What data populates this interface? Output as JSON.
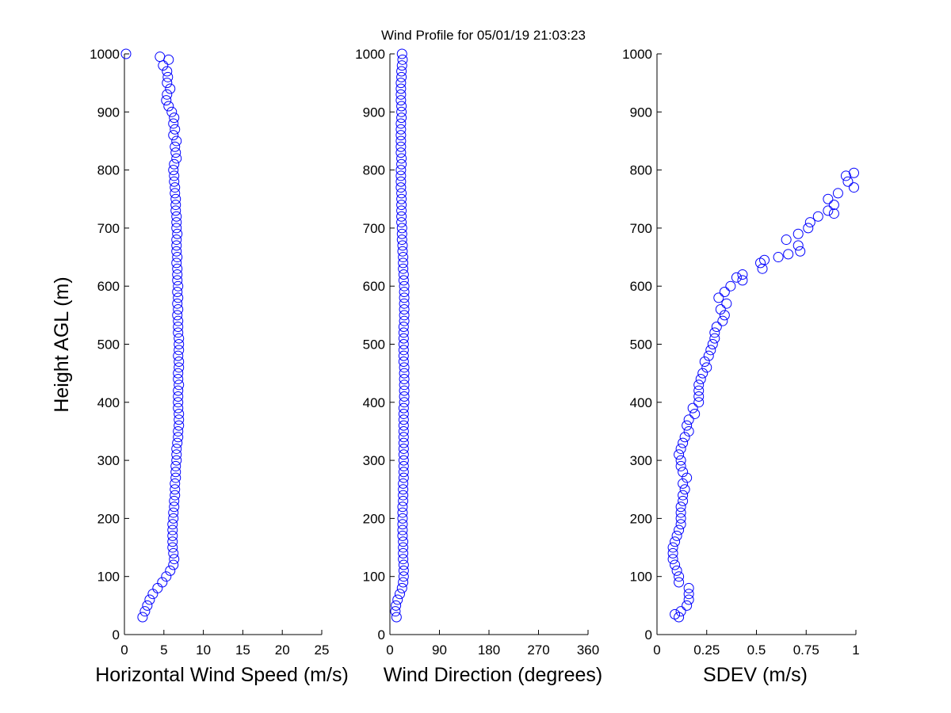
{
  "title": "Wind Profile for  05/01/19 21:03:23",
  "marker_color": "#0000ff",
  "chart_data": [
    {
      "type": "scatter",
      "name": "speed",
      "xlabel": "Horizontal Wind Speed (m/s)",
      "ylabel": "Height AGL (m)",
      "xlim": [
        0,
        25
      ],
      "ylim": [
        0,
        1000
      ],
      "xticks": [
        "0",
        "5",
        "10",
        "15",
        "20",
        "25"
      ],
      "xtick_values": [
        0,
        5,
        10,
        15,
        20,
        25
      ],
      "yticks": [
        "0",
        "100",
        "200",
        "300",
        "400",
        "500",
        "600",
        "700",
        "800",
        "900",
        "1000"
      ],
      "points": [
        [
          2.3,
          30
        ],
        [
          2.6,
          40
        ],
        [
          2.9,
          50
        ],
        [
          3.2,
          60
        ],
        [
          3.6,
          70
        ],
        [
          4.2,
          80
        ],
        [
          4.8,
          90
        ],
        [
          5.3,
          100
        ],
        [
          5.8,
          110
        ],
        [
          6.2,
          120
        ],
        [
          6.3,
          130
        ],
        [
          6.2,
          140
        ],
        [
          6.1,
          150
        ],
        [
          6.1,
          160
        ],
        [
          6.1,
          170
        ],
        [
          6.1,
          180
        ],
        [
          6.1,
          190
        ],
        [
          6.2,
          200
        ],
        [
          6.2,
          210
        ],
        [
          6.3,
          220
        ],
        [
          6.3,
          230
        ],
        [
          6.4,
          240
        ],
        [
          6.4,
          250
        ],
        [
          6.4,
          260
        ],
        [
          6.5,
          270
        ],
        [
          6.5,
          280
        ],
        [
          6.5,
          290
        ],
        [
          6.6,
          300
        ],
        [
          6.6,
          310
        ],
        [
          6.6,
          320
        ],
        [
          6.7,
          330
        ],
        [
          6.8,
          340
        ],
        [
          6.8,
          350
        ],
        [
          6.9,
          360
        ],
        [
          6.9,
          370
        ],
        [
          6.9,
          380
        ],
        [
          6.8,
          390
        ],
        [
          6.8,
          400
        ],
        [
          6.8,
          410
        ],
        [
          6.8,
          420
        ],
        [
          6.9,
          430
        ],
        [
          6.8,
          440
        ],
        [
          6.8,
          450
        ],
        [
          6.9,
          460
        ],
        [
          6.9,
          470
        ],
        [
          6.8,
          480
        ],
        [
          6.9,
          490
        ],
        [
          6.9,
          500
        ],
        [
          6.9,
          510
        ],
        [
          6.8,
          520
        ],
        [
          6.8,
          530
        ],
        [
          6.8,
          540
        ],
        [
          6.7,
          550
        ],
        [
          6.8,
          560
        ],
        [
          6.7,
          570
        ],
        [
          6.8,
          580
        ],
        [
          6.7,
          590
        ],
        [
          6.8,
          600
        ],
        [
          6.7,
          610
        ],
        [
          6.7,
          620
        ],
        [
          6.7,
          630
        ],
        [
          6.6,
          640
        ],
        [
          6.7,
          650
        ],
        [
          6.6,
          660
        ],
        [
          6.6,
          670
        ],
        [
          6.6,
          680
        ],
        [
          6.7,
          690
        ],
        [
          6.6,
          700
        ],
        [
          6.6,
          710
        ],
        [
          6.6,
          720
        ],
        [
          6.5,
          730
        ],
        [
          6.5,
          740
        ],
        [
          6.5,
          750
        ],
        [
          6.4,
          760
        ],
        [
          6.4,
          770
        ],
        [
          6.3,
          780
        ],
        [
          6.3,
          790
        ],
        [
          6.2,
          800
        ],
        [
          6.3,
          810
        ],
        [
          6.6,
          820
        ],
        [
          6.5,
          830
        ],
        [
          6.4,
          840
        ],
        [
          6.6,
          850
        ],
        [
          6.2,
          860
        ],
        [
          6.4,
          870
        ],
        [
          6.2,
          880
        ],
        [
          6.3,
          890
        ],
        [
          6.0,
          900
        ],
        [
          5.6,
          910
        ],
        [
          5.3,
          920
        ],
        [
          5.4,
          930
        ],
        [
          5.8,
          940
        ],
        [
          5.4,
          950
        ],
        [
          5.5,
          960
        ],
        [
          5.4,
          970
        ],
        [
          4.9,
          980
        ],
        [
          5.6,
          990
        ],
        [
          4.5,
          995
        ],
        [
          0.2,
          1000
        ]
      ]
    },
    {
      "type": "scatter",
      "name": "direction",
      "xlabel": "Wind Direction (degrees)",
      "xlim": [
        0,
        360
      ],
      "ylim": [
        0,
        1000
      ],
      "xticks": [
        "0",
        "90",
        "180",
        "270",
        "360"
      ],
      "xtick_values": [
        0,
        90,
        180,
        270,
        360
      ],
      "yticks": [
        "0",
        "100",
        "200",
        "300",
        "400",
        "500",
        "600",
        "700",
        "800",
        "900",
        "1000"
      ],
      "points": [
        [
          12,
          30
        ],
        [
          10,
          40
        ],
        [
          11,
          50
        ],
        [
          14,
          60
        ],
        [
          18,
          70
        ],
        [
          22,
          80
        ],
        [
          24,
          90
        ],
        [
          25,
          100
        ],
        [
          25,
          110
        ],
        [
          25,
          120
        ],
        [
          24,
          130
        ],
        [
          24,
          140
        ],
        [
          24,
          150
        ],
        [
          24,
          160
        ],
        [
          23,
          170
        ],
        [
          23,
          180
        ],
        [
          23,
          190
        ],
        [
          23,
          200
        ],
        [
          23,
          210
        ],
        [
          23,
          220
        ],
        [
          24,
          230
        ],
        [
          24,
          240
        ],
        [
          24,
          250
        ],
        [
          24,
          260
        ],
        [
          25,
          270
        ],
        [
          25,
          280
        ],
        [
          25,
          290
        ],
        [
          25,
          300
        ],
        [
          25,
          310
        ],
        [
          25,
          320
        ],
        [
          25,
          330
        ],
        [
          25,
          340
        ],
        [
          25,
          350
        ],
        [
          25,
          360
        ],
        [
          25,
          370
        ],
        [
          25,
          380
        ],
        [
          25,
          390
        ],
        [
          26,
          400
        ],
        [
          26,
          410
        ],
        [
          26,
          420
        ],
        [
          26,
          430
        ],
        [
          26,
          440
        ],
        [
          26,
          450
        ],
        [
          26,
          460
        ],
        [
          25,
          470
        ],
        [
          25,
          480
        ],
        [
          25,
          490
        ],
        [
          25,
          500
        ],
        [
          25,
          510
        ],
        [
          25,
          520
        ],
        [
          25,
          530
        ],
        [
          26,
          540
        ],
        [
          26,
          550
        ],
        [
          26,
          560
        ],
        [
          26,
          570
        ],
        [
          26,
          580
        ],
        [
          26,
          590
        ],
        [
          26,
          600
        ],
        [
          25,
          610
        ],
        [
          25,
          620
        ],
        [
          24,
          630
        ],
        [
          24,
          640
        ],
        [
          24,
          650
        ],
        [
          23,
          660
        ],
        [
          23,
          670
        ],
        [
          22,
          680
        ],
        [
          22,
          690
        ],
        [
          22,
          700
        ],
        [
          21,
          710
        ],
        [
          21,
          720
        ],
        [
          21,
          730
        ],
        [
          21,
          740
        ],
        [
          21,
          750
        ],
        [
          21,
          760
        ],
        [
          20,
          770
        ],
        [
          20,
          780
        ],
        [
          20,
          790
        ],
        [
          20,
          800
        ],
        [
          21,
          810
        ],
        [
          21,
          820
        ],
        [
          20,
          830
        ],
        [
          20,
          840
        ],
        [
          20,
          850
        ],
        [
          20,
          860
        ],
        [
          20,
          870
        ],
        [
          20,
          880
        ],
        [
          21,
          890
        ],
        [
          21,
          900
        ],
        [
          21,
          910
        ],
        [
          20,
          920
        ],
        [
          20,
          930
        ],
        [
          20,
          940
        ],
        [
          20,
          950
        ],
        [
          21,
          960
        ],
        [
          21,
          970
        ],
        [
          22,
          980
        ],
        [
          23,
          990
        ],
        [
          22,
          1000
        ]
      ]
    },
    {
      "type": "scatter",
      "name": "sdev",
      "xlabel": "SDEV  (m/s)",
      "xlim": [
        0,
        1
      ],
      "ylim": [
        0,
        1000
      ],
      "xticks": [
        "0",
        "0.25",
        "0.5",
        "0.75",
        "1"
      ],
      "xtick_values": [
        0,
        0.25,
        0.5,
        0.75,
        1
      ],
      "yticks": [
        "0",
        "100",
        "200",
        "300",
        "400",
        "500",
        "600",
        "700",
        "800",
        "900",
        "1000"
      ],
      "points": [
        [
          0.11,
          30
        ],
        [
          0.09,
          35
        ],
        [
          0.12,
          40
        ],
        [
          0.15,
          50
        ],
        [
          0.16,
          60
        ],
        [
          0.16,
          70
        ],
        [
          0.16,
          80
        ],
        [
          0.11,
          90
        ],
        [
          0.11,
          100
        ],
        [
          0.1,
          110
        ],
        [
          0.09,
          120
        ],
        [
          0.08,
          130
        ],
        [
          0.08,
          140
        ],
        [
          0.08,
          150
        ],
        [
          0.09,
          160
        ],
        [
          0.1,
          170
        ],
        [
          0.11,
          180
        ],
        [
          0.12,
          190
        ],
        [
          0.12,
          200
        ],
        [
          0.12,
          210
        ],
        [
          0.12,
          220
        ],
        [
          0.13,
          230
        ],
        [
          0.13,
          240
        ],
        [
          0.14,
          250
        ],
        [
          0.13,
          260
        ],
        [
          0.15,
          270
        ],
        [
          0.13,
          280
        ],
        [
          0.12,
          290
        ],
        [
          0.12,
          300
        ],
        [
          0.11,
          310
        ],
        [
          0.12,
          320
        ],
        [
          0.13,
          330
        ],
        [
          0.14,
          340
        ],
        [
          0.16,
          350
        ],
        [
          0.15,
          360
        ],
        [
          0.16,
          370
        ],
        [
          0.19,
          380
        ],
        [
          0.18,
          390
        ],
        [
          0.21,
          400
        ],
        [
          0.21,
          410
        ],
        [
          0.21,
          420
        ],
        [
          0.21,
          430
        ],
        [
          0.22,
          440
        ],
        [
          0.23,
          450
        ],
        [
          0.25,
          460
        ],
        [
          0.24,
          470
        ],
        [
          0.26,
          480
        ],
        [
          0.27,
          490
        ],
        [
          0.28,
          500
        ],
        [
          0.29,
          510
        ],
        [
          0.29,
          520
        ],
        [
          0.3,
          530
        ],
        [
          0.33,
          540
        ],
        [
          0.34,
          550
        ],
        [
          0.32,
          560
        ],
        [
          0.35,
          570
        ],
        [
          0.31,
          580
        ],
        [
          0.34,
          590
        ],
        [
          0.37,
          600
        ],
        [
          0.43,
          610
        ],
        [
          0.4,
          615
        ],
        [
          0.43,
          620
        ],
        [
          0.53,
          630
        ],
        [
          0.52,
          640
        ],
        [
          0.54,
          645
        ],
        [
          0.61,
          650
        ],
        [
          0.66,
          655
        ],
        [
          0.72,
          660
        ],
        [
          0.71,
          670
        ],
        [
          0.65,
          680
        ],
        [
          0.71,
          690
        ],
        [
          0.76,
          700
        ],
        [
          0.77,
          710
        ],
        [
          0.81,
          720
        ],
        [
          0.89,
          725
        ],
        [
          0.86,
          730
        ],
        [
          0.89,
          740
        ],
        [
          0.86,
          750
        ],
        [
          0.91,
          760
        ],
        [
          0.99,
          770
        ],
        [
          0.96,
          780
        ],
        [
          0.95,
          790
        ],
        [
          0.99,
          795
        ]
      ]
    }
  ]
}
